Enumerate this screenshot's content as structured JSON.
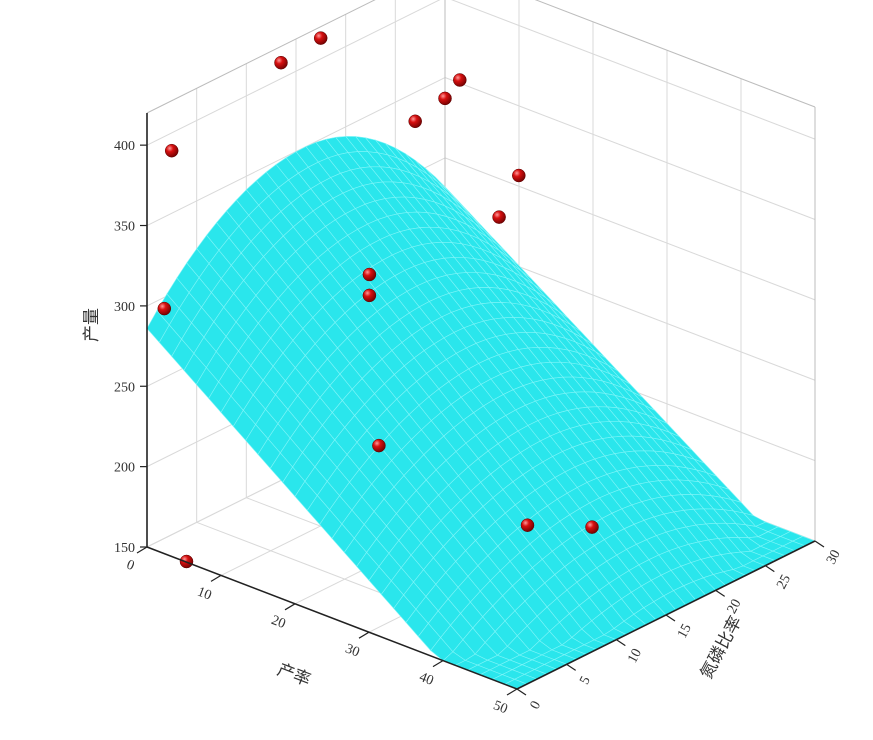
{
  "chart_data": {
    "type": "scatter",
    "kind": "3d-scatter-with-fitted-surface",
    "title": "",
    "xlabel": "产率",
    "ylabel": "氮磷比率",
    "zlabel": "产量",
    "xlim": [
      0,
      50
    ],
    "ylim": [
      0,
      30
    ],
    "zlim": [
      150,
      420
    ],
    "x_ticks": [
      "0",
      "10",
      "20",
      "30",
      "40",
      "50"
    ],
    "y_ticks": [
      "0",
      "5",
      "10",
      "15",
      "20",
      "25",
      "30"
    ],
    "z_ticks": [
      "150",
      "200",
      "250",
      "300",
      "350",
      "400"
    ],
    "grid": true,
    "colors": {
      "surface": "#2ae6ec",
      "surface_edge": "#7ff5f8",
      "points": "#b80000"
    },
    "surface_model": {
      "description": "quadratic fit",
      "x_range": [
        0,
        50
      ],
      "y_range": [
        0,
        30
      ],
      "peak": {
        "x": 0,
        "y": 16,
        "z": 350
      },
      "corners": [
        {
          "x": 0,
          "y": 0,
          "z": 286
        },
        {
          "x": 0,
          "y": 30,
          "z": 282
        },
        {
          "x": 50,
          "y": 0,
          "z": 113
        },
        {
          "x": 50,
          "y": 30,
          "z": 125
        }
      ]
    },
    "series": [
      {
        "points": [
          {
            "x": 2,
            "y": 1,
            "z": 397
          },
          {
            "x": 1,
            "y": 1,
            "z": 297
          },
          {
            "x": 4,
            "y": 1,
            "z": 145
          },
          {
            "x": 2,
            "y": 12,
            "z": 418
          },
          {
            "x": 2,
            "y": 16,
            "z": 421
          },
          {
            "x": 22,
            "y": 6,
            "z": 340
          },
          {
            "x": 22,
            "y": 6,
            "z": 327
          },
          {
            "x": 30,
            "y": 1,
            "z": 263
          },
          {
            "x": 0,
            "y": 27,
            "z": 332
          },
          {
            "x": 0,
            "y": 30,
            "z": 337
          },
          {
            "x": 14,
            "y": 27,
            "z": 323
          },
          {
            "x": 10,
            "y": 28,
            "z": 287
          },
          {
            "x": 0,
            "y": 23,
            "z": 290
          },
          {
            "x": 8,
            "y": 30,
            "z": 229
          },
          {
            "x": 2,
            "y": 30,
            "z": 352
          },
          {
            "x": 4,
            "y": 30,
            "z": 219
          },
          {
            "x": 22,
            "y": 30,
            "z": 198
          },
          {
            "x": 22,
            "y": 30,
            "z": 200
          },
          {
            "x": 38,
            "y": 10,
            "z": 200
          },
          {
            "x": 20,
            "y": 30,
            "z": 180
          },
          {
            "x": 40,
            "y": 15,
            "z": 187
          }
        ]
      }
    ]
  }
}
